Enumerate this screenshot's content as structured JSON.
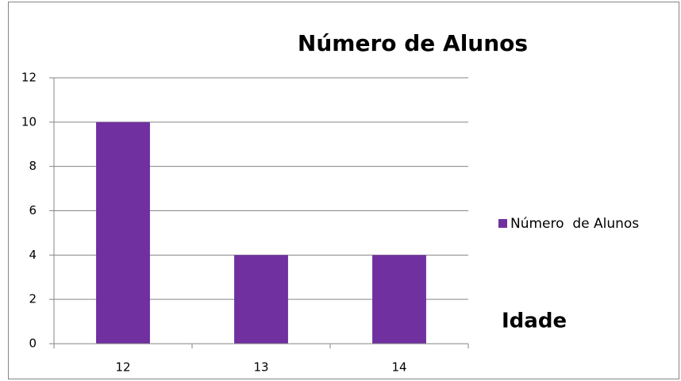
{
  "chart_data": {
    "type": "bar",
    "title": "Número de Alunos",
    "categories": [
      "12",
      "13",
      "14"
    ],
    "values": [
      10,
      4,
      4
    ],
    "color": "#7030a0",
    "series_name": "Número  de Alunos",
    "annotation": "Idade",
    "ylim": [
      0,
      12
    ],
    "yticks": [
      0,
      2,
      4,
      6,
      8,
      10,
      12
    ],
    "grid": true
  }
}
